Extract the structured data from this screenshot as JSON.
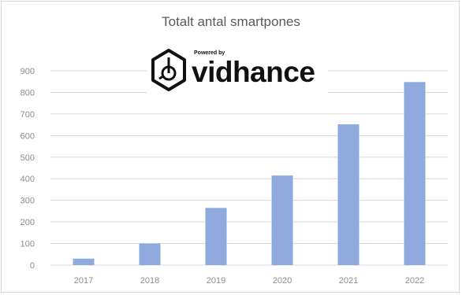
{
  "chart_data": {
    "type": "bar",
    "title": "Totalt antal smartpones",
    "categories": [
      "2017",
      "2018",
      "2019",
      "2020",
      "2021",
      "2022"
    ],
    "values": [
      30,
      100,
      265,
      415,
      652,
      848
    ],
    "ylim": [
      0,
      900
    ],
    "yticks": [
      0,
      100,
      200,
      300,
      400,
      500,
      600,
      700,
      800,
      900
    ],
    "grid": true,
    "bar_color": "#8faadc"
  },
  "watermark": {
    "powered_by": "Powered by",
    "word": "vidhance",
    "icon": "hexagon-cube-icon"
  }
}
